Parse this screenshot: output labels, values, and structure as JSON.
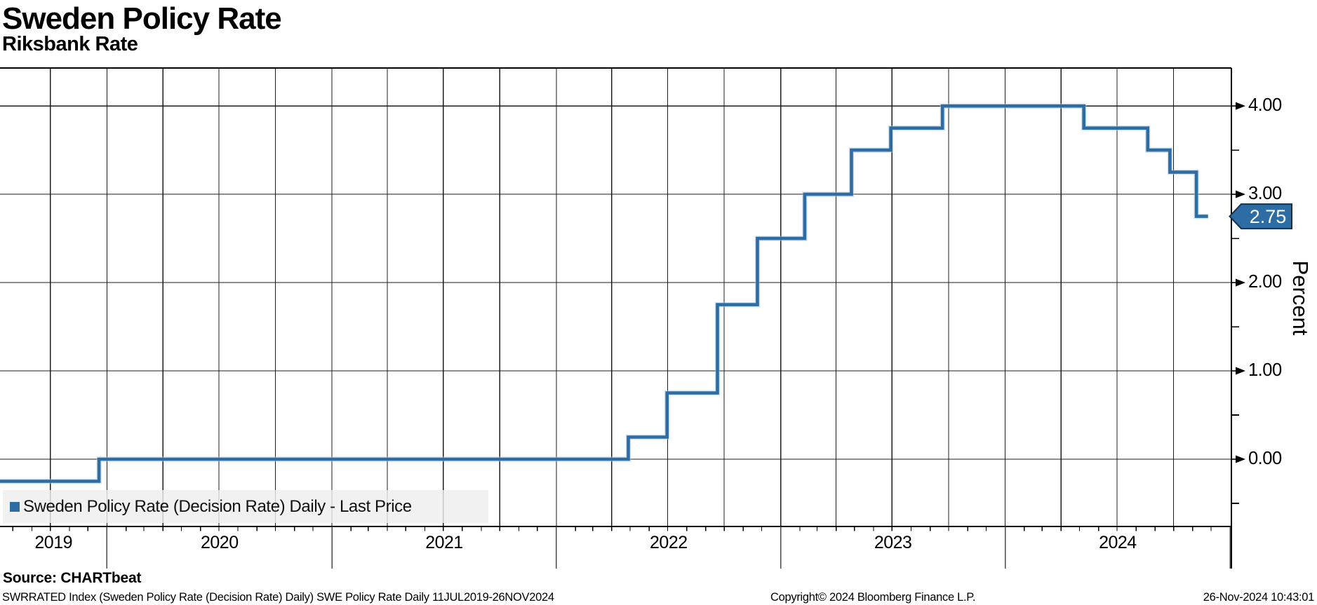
{
  "header": {
    "title": "Sweden Policy Rate",
    "subtitle": "Riksbank Rate"
  },
  "chart_data": {
    "type": "line",
    "step": true,
    "title": "Sweden Policy Rate",
    "subtitle": "Riksbank Rate",
    "ylabel": "Percent",
    "x_start": "2019-07-11",
    "x_end": "2025-01-03",
    "ylim": [
      -0.762,
      4.43
    ],
    "grid": {
      "vertical": "quarterly",
      "horizontal": "on-major-ticks",
      "legend_position": "bottom-left"
    },
    "yticks_major": [
      {
        "value": 4,
        "label": "4.00"
      },
      {
        "value": 3,
        "label": "3.00"
      },
      {
        "value": 2,
        "label": "2.00"
      },
      {
        "value": 1,
        "label": "1.00"
      },
      {
        "value": 0,
        "label": "0.00"
      }
    ],
    "yticks_minor": [
      3.5,
      2.5,
      1.5,
      0.5,
      -0.5
    ],
    "xticks_years": [
      "2019",
      "2020",
      "2021",
      "2022",
      "2023",
      "2024"
    ],
    "series": [
      {
        "name": "Sweden Policy Rate (Decision Rate) Daily - Last Price",
        "color": "#2e6da4",
        "end_date": "2024-11-26",
        "points": [
          {
            "date": "2019-07-11",
            "value": -0.25
          },
          {
            "date": "2019-12-19",
            "value": 0.0
          },
          {
            "date": "2022-04-28",
            "value": 0.25
          },
          {
            "date": "2022-06-30",
            "value": 0.75
          },
          {
            "date": "2022-09-20",
            "value": 1.75
          },
          {
            "date": "2022-11-24",
            "value": 2.5
          },
          {
            "date": "2023-02-09",
            "value": 3.0
          },
          {
            "date": "2023-04-26",
            "value": 3.5
          },
          {
            "date": "2023-06-29",
            "value": 3.75
          },
          {
            "date": "2023-09-21",
            "value": 4.0
          },
          {
            "date": "2024-05-08",
            "value": 3.75
          },
          {
            "date": "2024-08-20",
            "value": 3.5
          },
          {
            "date": "2024-09-25",
            "value": 3.25
          },
          {
            "date": "2024-11-07",
            "value": 2.75
          }
        ]
      }
    ],
    "last_price": {
      "value": 2.75,
      "label": "2.75"
    },
    "colors": {
      "line": "#2e6da4",
      "line_halo": "#a8c4de",
      "badge_fill": "#2e6da4",
      "badge_border": "#15334d",
      "badge_text": "#ffffff",
      "legend_marker": "#2e6da4"
    },
    "legend": {
      "label": "Sweden Policy Rate (Decision Rate) Daily - Last Price"
    }
  },
  "footer": {
    "source": "Source: CHARTbeat",
    "description": "SWRRATED Index (Sweden Policy Rate (Decision Rate) Daily) SWE Policy Rate  Daily 11JUL2019-26NOV2024",
    "copyright": "Copyright© 2024 Bloomberg Finance L.P.",
    "timestamp": "26-Nov-2024 10:43:01"
  }
}
